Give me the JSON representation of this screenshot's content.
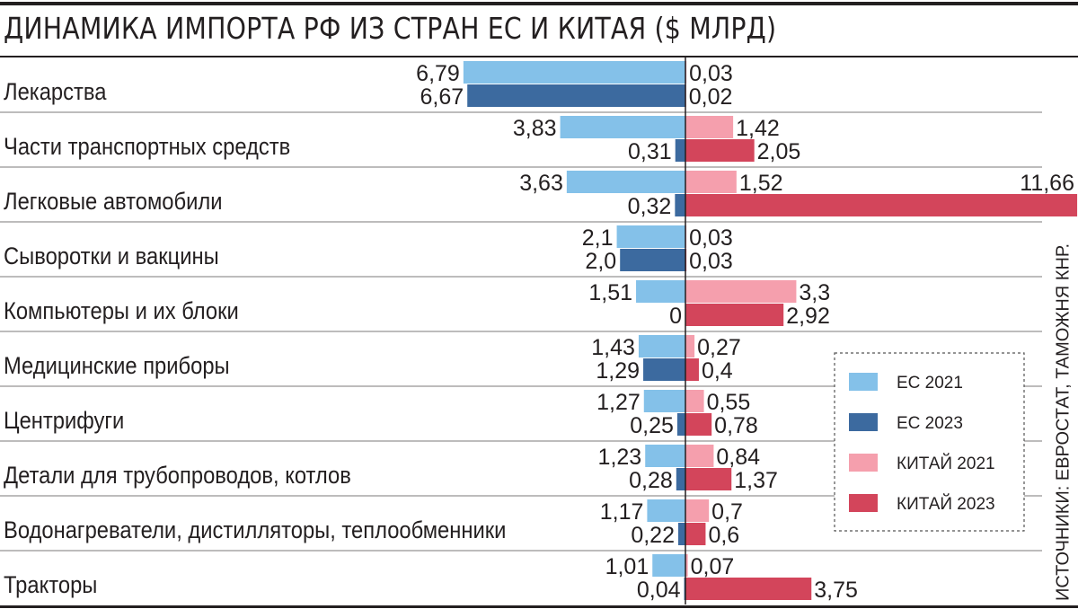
{
  "title": "ДИНАМИКА ИМПОРТА РФ ИЗ СТРАН ЕС И КИТАЯ ($ МЛРД)",
  "source": "ИСТОЧНИКИ: ЕВРОСТАТ, ТАМОЖНЯ КНР.",
  "colors": {
    "eu2021": "#84c1e9",
    "eu2023": "#3c6a9f",
    "cn2021": "#f59fad",
    "cn2023": "#d3455b",
    "text": "#231f20",
    "rule": "#231f20"
  },
  "chart_data": {
    "type": "bar",
    "categories": [
      "Лекарства",
      "Части транспортных средств",
      "Легковые автомобили",
      "Сыворотки и вакцины",
      "Компьютеры и их блоки",
      "Медицинские приборы",
      "Центрифуги",
      "Детали для трубопроводов, котлов",
      "Водонагреватели, дистилляторы, теплообменники",
      "Тракторы"
    ],
    "series": [
      {
        "name": "ЕС 2021",
        "side": "left",
        "color_key": "eu2021",
        "values": [
          6.79,
          3.83,
          3.63,
          2.1,
          1.51,
          1.43,
          1.27,
          1.23,
          1.17,
          1.01
        ],
        "labels": [
          "6,79",
          "3,83",
          "3,63",
          "2,1",
          "1,51",
          "1,43",
          "1,27",
          "1,23",
          "1,17",
          "1,01"
        ]
      },
      {
        "name": "ЕС 2023",
        "side": "left",
        "color_key": "eu2023",
        "values": [
          6.67,
          0.31,
          0.32,
          2.0,
          0,
          1.29,
          0.25,
          0.28,
          0.22,
          0.04
        ],
        "labels": [
          "6,67",
          "0,31",
          "0,32",
          "2,0",
          "0",
          "1,29",
          "0,25",
          "0,28",
          "0,22",
          "0,04"
        ]
      },
      {
        "name": "КИТАЙ 2021",
        "side": "right",
        "color_key": "cn2021",
        "values": [
          0.03,
          1.42,
          1.52,
          0.03,
          3.3,
          0.27,
          0.55,
          0.84,
          0.7,
          0.07
        ],
        "labels": [
          "0,03",
          "1,42",
          "1,52",
          "0,03",
          "3,3",
          "0,27",
          "0,55",
          "0,84",
          "0,7",
          "0,07"
        ]
      },
      {
        "name": "КИТАЙ 2023",
        "side": "right",
        "color_key": "cn2023",
        "values": [
          0.02,
          2.05,
          11.66,
          0.03,
          2.92,
          0.4,
          0.78,
          1.37,
          0.6,
          3.75
        ],
        "labels": [
          "0,02",
          "2,05",
          "11,66",
          "0,03",
          "2,92",
          "0,4",
          "0,78",
          "1,37",
          "0,6",
          "3,75"
        ]
      }
    ],
    "legend_position": "bottom-right"
  }
}
